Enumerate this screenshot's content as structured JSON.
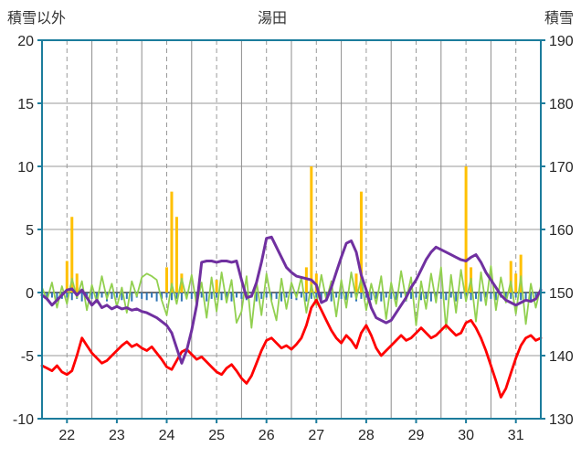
{
  "header": {
    "left_axis_label": "積雪以外",
    "title": "湯田",
    "right_axis_label": "積雪"
  },
  "chart_data": {
    "type": "line",
    "title": "湯田",
    "left_axis": {
      "label": "積雪以外",
      "min": -10,
      "max": 20,
      "ticks": [
        20,
        15,
        10,
        5,
        0,
        -5,
        -10
      ]
    },
    "right_axis": {
      "label": "積雪",
      "min": 130,
      "max": 190,
      "ticks": [
        190,
        180,
        170,
        160,
        150,
        140,
        130
      ]
    },
    "x_axis": {
      "min": 21.5,
      "max": 31.5,
      "tick_labels": [
        22,
        23,
        24,
        25,
        26,
        27,
        28,
        29,
        30,
        31
      ]
    },
    "x_start": 21.5,
    "x_step": 0.1,
    "grid": {
      "color": "#999999",
      "zero_line_color": "#404040",
      "frame_color": "#1c7c9c"
    },
    "series": [
      {
        "name": "blue-bars",
        "type": "bar",
        "color": "#2e74b5",
        "width": 2,
        "values": [
          -0.5,
          -0.6,
          -0.4,
          -0.7,
          -0.5,
          -0.4,
          -0.6,
          -0.5,
          -0.7,
          -0.4,
          -0.5,
          -0.6,
          -0.4,
          -0.7,
          -0.5,
          -0.4,
          -0.6,
          -0.5,
          -0.7,
          -0.4,
          -0.5,
          -0.6,
          -0.4,
          -0.7,
          -0.5,
          -0.4,
          -0.6,
          -0.5,
          -0.7,
          -0.4,
          -0.5,
          -0.6,
          -0.4,
          -0.7,
          -0.5,
          -0.4,
          -0.6,
          -0.5,
          -0.7,
          -0.4,
          -0.5,
          -0.6,
          -0.4,
          -0.7,
          -0.5,
          -0.4,
          -0.6,
          -0.5,
          -0.7,
          -0.4,
          -0.5,
          -0.6,
          -0.4,
          -0.7,
          -0.5,
          -0.4,
          -0.6,
          -0.5,
          -0.7,
          -0.4,
          -0.5,
          -0.6,
          -0.4,
          -0.7,
          -0.5,
          -0.4,
          -0.6,
          -0.5,
          -0.7,
          -0.4,
          -0.5,
          -0.6,
          -0.4,
          -0.7,
          -0.5,
          -0.4,
          -0.6,
          -0.5,
          -0.7,
          -0.4,
          -0.5,
          -0.6,
          -0.4,
          -0.7,
          -0.5,
          -0.4,
          -0.6,
          -0.5,
          -0.7,
          -0.4,
          -0.5,
          -0.6,
          -0.4,
          -0.7,
          -0.5,
          -0.4,
          -0.6,
          -0.5,
          -0.7,
          -0.4,
          -0.5
        ]
      },
      {
        "name": "orange-bars",
        "type": "bar",
        "color": "#ffc000",
        "width": 3,
        "values": [
          0,
          0,
          0,
          0,
          0,
          2.5,
          6,
          1.5,
          0,
          0,
          0,
          0,
          0,
          0,
          0,
          0,
          0,
          0,
          0,
          0,
          0,
          0,
          0,
          0,
          0,
          2,
          8,
          6,
          1.5,
          0,
          0,
          0,
          0,
          0,
          0,
          1,
          0,
          0,
          0,
          0,
          0,
          0,
          0,
          0,
          0,
          0,
          0,
          0,
          0,
          0,
          0,
          0,
          0,
          2,
          10,
          1.5,
          0,
          0,
          0,
          0,
          0,
          0,
          0,
          1.5,
          8,
          0,
          0,
          0,
          0,
          0,
          0,
          0,
          0,
          0,
          0,
          0,
          0,
          0,
          0,
          0,
          0,
          0,
          0,
          0,
          0,
          10,
          2,
          0,
          0,
          0,
          0,
          0,
          0,
          0,
          2.5,
          1.5,
          3,
          0,
          0,
          0,
          0
        ]
      },
      {
        "name": "green-line",
        "type": "line",
        "color": "#92d050",
        "width": 1.8,
        "values": [
          0.4,
          -0.6,
          0.8,
          -1.2,
          0.5,
          -0.9,
          1.1,
          -0.4,
          0.9,
          -1.4,
          0.6,
          -0.8,
          1.3,
          -0.5,
          0.7,
          -1.1,
          0.4,
          -1.6,
          0.9,
          -0.3,
          1.2,
          1.5,
          1.3,
          1.0,
          -0.6,
          -1.8,
          0.7,
          -0.9,
          1.1,
          -0.5,
          1.4,
          -1.0,
          0.8,
          -2.0,
          1.2,
          -1.5,
          1.6,
          -0.8,
          1.0,
          -2.4,
          -1.5,
          1.3,
          -2.8,
          0.9,
          -1.8,
          1.5,
          -0.7,
          -2.2,
          1.1,
          -1.3,
          0.8,
          -0.4,
          1.2,
          -1.6,
          0.6,
          -1.0,
          1.4,
          -0.6,
          0.9,
          -1.9,
          1.0,
          -1.2,
          1.6,
          -0.5,
          1.1,
          -1.4,
          0.7,
          -0.9,
          1.3,
          -2.1,
          0.8,
          -1.1,
          1.7,
          -0.6,
          1.2,
          -2.6,
          0.9,
          -1.3,
          1.5,
          -0.8,
          2.0,
          -2.9,
          1.4,
          -1.6,
          1.8,
          -0.7,
          1.1,
          -2.3,
          1.6,
          -1.0,
          2.1,
          -1.4,
          1.2,
          -0.8,
          0.9,
          -1.7,
          1.3,
          -2.5,
          0.7,
          -1.2,
          0.5
        ]
      },
      {
        "name": "red-line",
        "type": "line",
        "color": "#ff0000",
        "width": 2.8,
        "values": [
          -5.8,
          -6.0,
          -6.2,
          -5.8,
          -6.3,
          -6.5,
          -6.2,
          -5.0,
          -3.6,
          -4.2,
          -4.8,
          -5.2,
          -5.6,
          -5.4,
          -5.0,
          -4.6,
          -4.2,
          -3.9,
          -4.3,
          -4.1,
          -4.4,
          -4.6,
          -4.3,
          -4.8,
          -5.3,
          -5.9,
          -6.1,
          -5.4,
          -4.7,
          -4.5,
          -4.9,
          -5.3,
          -5.1,
          -5.5,
          -5.9,
          -6.3,
          -6.5,
          -6.0,
          -5.7,
          -6.2,
          -6.8,
          -7.2,
          -6.6,
          -5.6,
          -4.6,
          -3.8,
          -3.6,
          -4.0,
          -4.4,
          -4.2,
          -4.5,
          -4.1,
          -3.6,
          -2.6,
          -1.2,
          -0.6,
          -1.4,
          -2.2,
          -3.0,
          -3.6,
          -4.0,
          -3.4,
          -3.8,
          -4.4,
          -3.2,
          -2.6,
          -3.4,
          -4.4,
          -5.0,
          -4.6,
          -4.2,
          -3.8,
          -3.4,
          -3.8,
          -3.6,
          -3.2,
          -2.8,
          -3.2,
          -3.6,
          -3.4,
          -3.0,
          -2.6,
          -3.0,
          -3.4,
          -3.2,
          -2.4,
          -2.2,
          -2.8,
          -3.6,
          -4.6,
          -5.8,
          -7.0,
          -8.3,
          -7.6,
          -6.4,
          -5.2,
          -4.2,
          -3.6,
          -3.4,
          -3.8,
          -3.6
        ]
      },
      {
        "name": "purple-line",
        "type": "line",
        "color": "#7030a0",
        "width": 3,
        "values": [
          -0.2,
          -0.5,
          -1.0,
          -0.6,
          -0.2,
          0.2,
          0.3,
          -0.2,
          0.2,
          -0.4,
          -1.0,
          -0.6,
          -1.2,
          -1.0,
          -1.3,
          -1.1,
          -1.3,
          -1.2,
          -1.4,
          -1.3,
          -1.5,
          -1.6,
          -1.8,
          -2.0,
          -2.3,
          -2.6,
          -3.2,
          -4.4,
          -5.6,
          -4.6,
          -3.0,
          -1.0,
          2.4,
          2.5,
          2.5,
          2.4,
          2.5,
          2.5,
          2.4,
          2.5,
          1.0,
          -0.4,
          -0.3,
          0.8,
          2.4,
          4.3,
          4.4,
          3.6,
          2.8,
          2.0,
          1.6,
          1.3,
          1.2,
          1.1,
          1.0,
          0.6,
          -0.8,
          -0.6,
          0.4,
          1.6,
          2.8,
          3.9,
          4.1,
          3.2,
          1.4,
          0.2,
          -1.2,
          -2.0,
          -2.2,
          -2.4,
          -2.2,
          -1.6,
          -1.0,
          -0.4,
          0.4,
          1.0,
          1.8,
          2.6,
          3.2,
          3.6,
          3.4,
          3.2,
          3.0,
          2.8,
          2.6,
          2.5,
          2.8,
          3.0,
          2.4,
          1.6,
          1.0,
          0.4,
          -0.2,
          -0.6,
          -0.8,
          -1.0,
          -0.8,
          -0.6,
          -0.7,
          -0.5,
          0.2
        ]
      }
    ]
  }
}
